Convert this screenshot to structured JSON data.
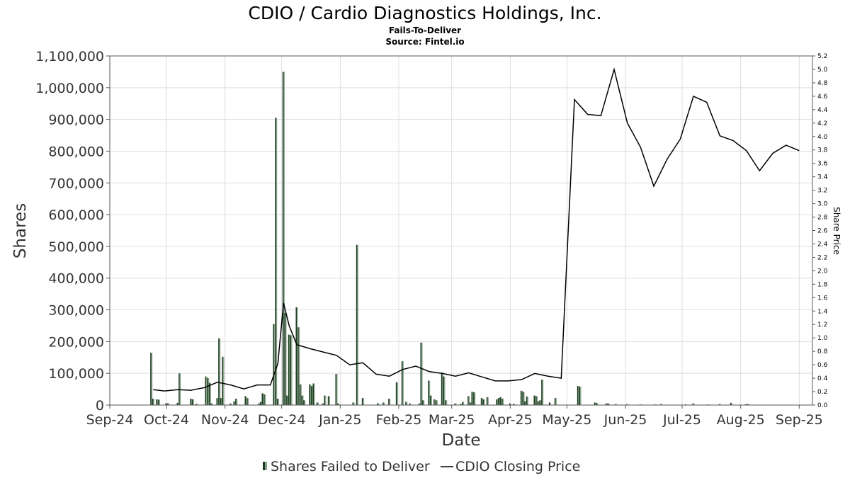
{
  "chart_data": {
    "type": "bar",
    "title": "CDIO / Cardio Diagnostics Holdings, Inc.",
    "subtitle_1": "Fails-To-Deliver",
    "subtitle_2": "Source: Fintel.io",
    "xlabel": "Date",
    "ylabel": "Shares",
    "y2label": "Share Price",
    "ylim": [
      0,
      1100000
    ],
    "y2lim": [
      0,
      5.2
    ],
    "x_range": [
      "2024-09-01",
      "2025-09-08"
    ],
    "x_ticks": [
      {
        "date": "2024-09-01",
        "label": "Sep-24"
      },
      {
        "date": "2024-10-01",
        "label": "Oct-24"
      },
      {
        "date": "2024-11-01",
        "label": "Nov-24"
      },
      {
        "date": "2024-12-01",
        "label": "Dec-24"
      },
      {
        "date": "2025-01-01",
        "label": "Jan-25"
      },
      {
        "date": "2025-02-01",
        "label": "Feb-25"
      },
      {
        "date": "2025-03-01",
        "label": "Mar-25"
      },
      {
        "date": "2025-04-01",
        "label": "Apr-25"
      },
      {
        "date": "2025-05-01",
        "label": "May-25"
      },
      {
        "date": "2025-06-01",
        "label": "Jun-25"
      },
      {
        "date": "2025-07-01",
        "label": "Jul-25"
      },
      {
        "date": "2025-08-01",
        "label": "Aug-25"
      },
      {
        "date": "2025-09-01",
        "label": "Sep-25"
      }
    ],
    "y_ticks": [
      {
        "value": 0,
        "label": "0"
      },
      {
        "value": 100000,
        "label": "100,000"
      },
      {
        "value": 200000,
        "label": "200,000"
      },
      {
        "value": 300000,
        "label": "300,000"
      },
      {
        "value": 400000,
        "label": "400,000"
      },
      {
        "value": 500000,
        "label": "500,000"
      },
      {
        "value": 600000,
        "label": "600,000"
      },
      {
        "value": 700000,
        "label": "700,000"
      },
      {
        "value": 800000,
        "label": "800,000"
      },
      {
        "value": 900000,
        "label": "900,000"
      },
      {
        "value": 1000000,
        "label": "1,000,000"
      },
      {
        "value": 1100000,
        "label": "1,100,000"
      }
    ],
    "y2_ticks": [
      "0.0",
      "0.2",
      "0.4",
      "0.6",
      "0.8",
      "1.0",
      "1.2",
      "1.4",
      "1.6",
      "1.8",
      "2.0",
      "2.2",
      "2.4",
      "2.6",
      "2.8",
      "3.0",
      "3.2",
      "3.4",
      "3.6",
      "3.8",
      "4.0",
      "4.2",
      "4.4",
      "4.6",
      "4.8",
      "5.0",
      "5.2"
    ],
    "grid": true,
    "legend": {
      "placement": "bottom-center",
      "items": [
        {
          "label": "Shares Failed to Deliver",
          "marker": "bar"
        },
        {
          "label": "CDIO Closing Price",
          "marker": "line"
        }
      ]
    },
    "colors": {
      "bar_dark": "#1a3d1f",
      "bar_light": "#8aa08a",
      "bar_mid": "#2e6b35",
      "line": "#000000",
      "grid": "#dddddd"
    },
    "series": [
      {
        "name": "Shares Failed to Deliver",
        "type": "bar",
        "points": [
          {
            "x": "2024-09-23",
            "y": 165000
          },
          {
            "x": "2024-09-24",
            "y": 20000
          },
          {
            "x": "2024-09-26",
            "y": 18000
          },
          {
            "x": "2024-09-27",
            "y": 17000
          },
          {
            "x": "2024-10-01",
            "y": 6000
          },
          {
            "x": "2024-10-02",
            "y": 5000
          },
          {
            "x": "2024-10-07",
            "y": 7000
          },
          {
            "x": "2024-10-08",
            "y": 100000
          },
          {
            "x": "2024-10-14",
            "y": 20000
          },
          {
            "x": "2024-10-15",
            "y": 18000
          },
          {
            "x": "2024-10-17",
            "y": 4000
          },
          {
            "x": "2024-10-22",
            "y": 90000
          },
          {
            "x": "2024-10-23",
            "y": 85000
          },
          {
            "x": "2024-10-24",
            "y": 70000
          },
          {
            "x": "2024-10-25",
            "y": 5000
          },
          {
            "x": "2024-10-28",
            "y": 22000
          },
          {
            "x": "2024-10-29",
            "y": 210000
          },
          {
            "x": "2024-10-30",
            "y": 22000
          },
          {
            "x": "2024-10-31",
            "y": 152000
          },
          {
            "x": "2024-11-04",
            "y": 5000
          },
          {
            "x": "2024-11-06",
            "y": 12000
          },
          {
            "x": "2024-11-07",
            "y": 20000
          },
          {
            "x": "2024-11-12",
            "y": 28000
          },
          {
            "x": "2024-11-13",
            "y": 22000
          },
          {
            "x": "2024-11-19",
            "y": 5000
          },
          {
            "x": "2024-11-20",
            "y": 10000
          },
          {
            "x": "2024-11-21",
            "y": 37000
          },
          {
            "x": "2024-11-22",
            "y": 34000
          },
          {
            "x": "2024-11-27",
            "y": 255000
          },
          {
            "x": "2024-11-28",
            "y": 905000
          },
          {
            "x": "2024-11-29",
            "y": 20000
          },
          {
            "x": "2024-12-02",
            "y": 1050000
          },
          {
            "x": "2024-12-03",
            "y": 290000
          },
          {
            "x": "2024-12-04",
            "y": 30000
          },
          {
            "x": "2024-12-05",
            "y": 222000
          },
          {
            "x": "2024-12-06",
            "y": 220000
          },
          {
            "x": "2024-12-09",
            "y": 308000
          },
          {
            "x": "2024-12-10",
            "y": 245000
          },
          {
            "x": "2024-12-11",
            "y": 65000
          },
          {
            "x": "2024-12-12",
            "y": 30000
          },
          {
            "x": "2024-12-13",
            "y": 15000
          },
          {
            "x": "2024-12-16",
            "y": 65000
          },
          {
            "x": "2024-12-17",
            "y": 60000
          },
          {
            "x": "2024-12-18",
            "y": 68000
          },
          {
            "x": "2024-12-20",
            "y": 8000
          },
          {
            "x": "2024-12-23",
            "y": 5000
          },
          {
            "x": "2024-12-24",
            "y": 30000
          },
          {
            "x": "2024-12-26",
            "y": 28000
          },
          {
            "x": "2024-12-30",
            "y": 98000
          },
          {
            "x": "2024-12-31",
            "y": 5000
          },
          {
            "x": "2025-01-08",
            "y": 8000
          },
          {
            "x": "2025-01-10",
            "y": 505000
          },
          {
            "x": "2025-01-13",
            "y": 22000
          },
          {
            "x": "2025-01-21",
            "y": 6000
          },
          {
            "x": "2025-01-24",
            "y": 8000
          },
          {
            "x": "2025-01-27",
            "y": 20000
          },
          {
            "x": "2025-01-31",
            "y": 72000
          },
          {
            "x": "2025-02-03",
            "y": 138000
          },
          {
            "x": "2025-02-05",
            "y": 10000
          },
          {
            "x": "2025-02-07",
            "y": 5000
          },
          {
            "x": "2025-02-12",
            "y": 5000
          },
          {
            "x": "2025-02-13",
            "y": 197000
          },
          {
            "x": "2025-02-14",
            "y": 15000
          },
          {
            "x": "2025-02-17",
            "y": 77000
          },
          {
            "x": "2025-02-18",
            "y": 30000
          },
          {
            "x": "2025-02-20",
            "y": 18000
          },
          {
            "x": "2025-02-21",
            "y": 15000
          },
          {
            "x": "2025-02-24",
            "y": 103000
          },
          {
            "x": "2025-02-25",
            "y": 90000
          },
          {
            "x": "2025-02-26",
            "y": 15000
          },
          {
            "x": "2025-03-03",
            "y": 5000
          },
          {
            "x": "2025-03-06",
            "y": 4000
          },
          {
            "x": "2025-03-07",
            "y": 10000
          },
          {
            "x": "2025-03-10",
            "y": 28000
          },
          {
            "x": "2025-03-11",
            "y": 8000
          },
          {
            "x": "2025-03-12",
            "y": 42000
          },
          {
            "x": "2025-03-13",
            "y": 40000
          },
          {
            "x": "2025-03-17",
            "y": 22000
          },
          {
            "x": "2025-03-18",
            "y": 18000
          },
          {
            "x": "2025-03-20",
            "y": 25000
          },
          {
            "x": "2025-03-25",
            "y": 18000
          },
          {
            "x": "2025-03-26",
            "y": 22000
          },
          {
            "x": "2025-03-27",
            "y": 25000
          },
          {
            "x": "2025-03-28",
            "y": 20000
          },
          {
            "x": "2025-04-01",
            "y": 5000
          },
          {
            "x": "2025-04-03",
            "y": 4000
          },
          {
            "x": "2025-04-07",
            "y": 45000
          },
          {
            "x": "2025-04-08",
            "y": 42000
          },
          {
            "x": "2025-04-09",
            "y": 12000
          },
          {
            "x": "2025-04-10",
            "y": 27000
          },
          {
            "x": "2025-04-14",
            "y": 30000
          },
          {
            "x": "2025-04-15",
            "y": 28000
          },
          {
            "x": "2025-04-16",
            "y": 12000
          },
          {
            "x": "2025-04-17",
            "y": 15000
          },
          {
            "x": "2025-04-18",
            "y": 80000
          },
          {
            "x": "2025-04-22",
            "y": 8000
          },
          {
            "x": "2025-04-25",
            "y": 22000
          },
          {
            "x": "2025-05-07",
            "y": 60000
          },
          {
            "x": "2025-05-08",
            "y": 58000
          },
          {
            "x": "2025-05-16",
            "y": 8000
          },
          {
            "x": "2025-05-17",
            "y": 6000
          },
          {
            "x": "2025-05-22",
            "y": 5000
          },
          {
            "x": "2025-05-23",
            "y": 5000
          },
          {
            "x": "2025-05-27",
            "y": 3000
          },
          {
            "x": "2025-06-02",
            "y": 3000
          },
          {
            "x": "2025-06-09",
            "y": 2000
          },
          {
            "x": "2025-06-17",
            "y": 2000
          },
          {
            "x": "2025-06-20",
            "y": 3000
          },
          {
            "x": "2025-07-03",
            "y": 2000
          },
          {
            "x": "2025-07-07",
            "y": 5000
          },
          {
            "x": "2025-07-15",
            "y": 2000
          },
          {
            "x": "2025-07-21",
            "y": 3000
          },
          {
            "x": "2025-07-27",
            "y": 7000
          },
          {
            "x": "2025-08-04",
            "y": 3000
          },
          {
            "x": "2025-08-05",
            "y": 3000
          }
        ]
      },
      {
        "name": "CDIO Closing Price",
        "type": "line",
        "points": [
          {
            "x": "2024-09-24",
            "y": 0.23
          },
          {
            "x": "2024-09-30",
            "y": 0.21
          },
          {
            "x": "2024-10-07",
            "y": 0.23
          },
          {
            "x": "2024-10-14",
            "y": 0.22
          },
          {
            "x": "2024-10-21",
            "y": 0.26
          },
          {
            "x": "2024-10-28",
            "y": 0.34
          },
          {
            "x": "2024-11-04",
            "y": 0.3
          },
          {
            "x": "2024-11-11",
            "y": 0.24
          },
          {
            "x": "2024-11-18",
            "y": 0.3
          },
          {
            "x": "2024-11-25",
            "y": 0.3
          },
          {
            "x": "2024-11-29",
            "y": 0.62
          },
          {
            "x": "2024-12-02",
            "y": 1.52
          },
          {
            "x": "2024-12-05",
            "y": 1.18
          },
          {
            "x": "2024-12-09",
            "y": 0.9
          },
          {
            "x": "2024-12-16",
            "y": 0.84
          },
          {
            "x": "2024-12-23",
            "y": 0.79
          },
          {
            "x": "2024-12-30",
            "y": 0.74
          },
          {
            "x": "2025-01-06",
            "y": 0.6
          },
          {
            "x": "2025-01-13",
            "y": 0.63
          },
          {
            "x": "2025-01-20",
            "y": 0.46
          },
          {
            "x": "2025-01-27",
            "y": 0.43
          },
          {
            "x": "2025-02-03",
            "y": 0.53
          },
          {
            "x": "2025-02-10",
            "y": 0.58
          },
          {
            "x": "2025-02-17",
            "y": 0.5
          },
          {
            "x": "2025-02-24",
            "y": 0.47
          },
          {
            "x": "2025-03-03",
            "y": 0.43
          },
          {
            "x": "2025-03-10",
            "y": 0.48
          },
          {
            "x": "2025-03-17",
            "y": 0.42
          },
          {
            "x": "2025-03-24",
            "y": 0.36
          },
          {
            "x": "2025-03-31",
            "y": 0.36
          },
          {
            "x": "2025-04-07",
            "y": 0.38
          },
          {
            "x": "2025-04-14",
            "y": 0.47
          },
          {
            "x": "2025-04-21",
            "y": 0.43
          },
          {
            "x": "2025-04-28",
            "y": 0.4
          },
          {
            "x": "2025-05-05",
            "y": 4.55
          },
          {
            "x": "2025-05-12",
            "y": 4.33
          },
          {
            "x": "2025-05-19",
            "y": 4.31
          },
          {
            "x": "2025-05-26",
            "y": 5.0
          },
          {
            "x": "2025-06-02",
            "y": 4.2
          },
          {
            "x": "2025-06-09",
            "y": 3.84
          },
          {
            "x": "2025-06-16",
            "y": 3.26
          },
          {
            "x": "2025-06-23",
            "y": 3.66
          },
          {
            "x": "2025-06-30",
            "y": 3.96
          },
          {
            "x": "2025-07-07",
            "y": 4.6
          },
          {
            "x": "2025-07-14",
            "y": 4.51
          },
          {
            "x": "2025-07-21",
            "y": 4.01
          },
          {
            "x": "2025-07-28",
            "y": 3.94
          },
          {
            "x": "2025-08-04",
            "y": 3.79
          },
          {
            "x": "2025-08-11",
            "y": 3.49
          },
          {
            "x": "2025-08-18",
            "y": 3.75
          },
          {
            "x": "2025-08-25",
            "y": 3.87
          },
          {
            "x": "2025-09-01",
            "y": 3.79
          }
        ]
      }
    ]
  }
}
